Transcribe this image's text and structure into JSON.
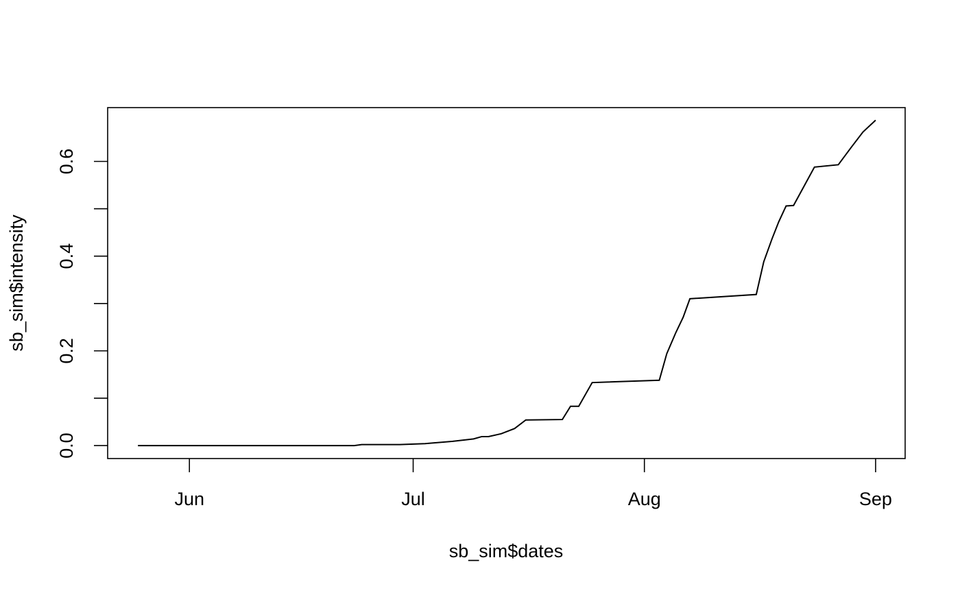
{
  "chart_data": {
    "type": "line",
    "x_label": "sb_sim$dates",
    "y_label": "sb_sim$intensity",
    "x": [
      145.1,
      174.1,
      175.1,
      180.2,
      183.6,
      187.3,
      190.1,
      191.2,
      192.1,
      193.8,
      195.6,
      197.1,
      202.0,
      203.1,
      204.2,
      206.0,
      215.0,
      216.0,
      217.2,
      218.2,
      219.1,
      228.0,
      229.0,
      230.1,
      231.0,
      232.0,
      233.0,
      235.8,
      239.0,
      240.7,
      242.3,
      244.0
    ],
    "series": [
      {
        "color": "#000000",
        "values": [
          0,
          0,
          0.002,
          0.002,
          0.004,
          0.009,
          0.014,
          0.019,
          0.019,
          0.025,
          0.036,
          0.054,
          0.055,
          0.083,
          0.083,
          0.133,
          0.138,
          0.194,
          0.238,
          0.271,
          0.31,
          0.319,
          0.388,
          0.436,
          0.472,
          0.506,
          0.507,
          0.588,
          0.593,
          0.629,
          0.662,
          0.687
        ]
      }
    ],
    "xlim": [
      141.04,
      247.96
    ],
    "xticks": [
      {
        "value": 152,
        "label": "Jun"
      },
      {
        "value": 182,
        "label": "Jul"
      },
      {
        "value": 213,
        "label": "Aug"
      },
      {
        "value": 244,
        "label": "Sep"
      }
    ],
    "ylim": [
      -0.0274,
      0.7136
    ],
    "yticks": [
      {
        "value": 0,
        "label": "0.0"
      },
      0.2,
      0.4,
      0.6
    ],
    "yminorticks": [
      0.1,
      0.3,
      0.5
    ],
    "grid": false
  }
}
